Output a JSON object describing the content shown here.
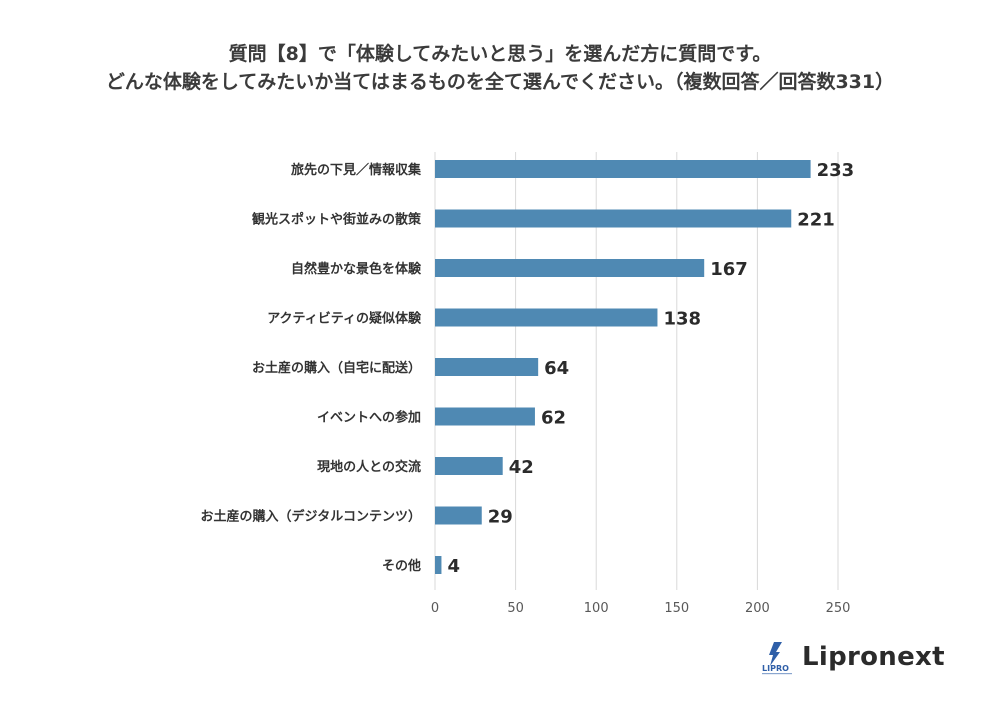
{
  "title": {
    "line1": "質問【8】で「体験してみたいと思う」を選んだ方に質問です。",
    "line2": "どんな体験をしてみたいか当てはまるものを全て選んでください。（複数回答／回答数331）"
  },
  "logo": {
    "text": "Lipronext",
    "mark_text": "LIPRO"
  },
  "colors": {
    "bar": "#4f89b3",
    "grid": "#d9d9d9",
    "axis_text": "#595959",
    "label_text": "#333333"
  },
  "chart_data": {
    "type": "bar",
    "orientation": "horizontal",
    "categories": [
      "旅先の下見／情報収集",
      "観光スポットや街並みの散策",
      "自然豊かな景色を体験",
      "アクティビティの疑似体験",
      "お土産の購入（自宅に配送）",
      "イベントへの参加",
      "現地の人との交流",
      "お土産の購入（デジタルコンテンツ）",
      "その他"
    ],
    "values": [
      233,
      221,
      167,
      138,
      64,
      62,
      42,
      29,
      4
    ],
    "xlim": [
      0,
      250
    ],
    "xticks": [
      0,
      50,
      100,
      150,
      200,
      250
    ],
    "grid": true,
    "data_labels": true,
    "legend": "none"
  }
}
